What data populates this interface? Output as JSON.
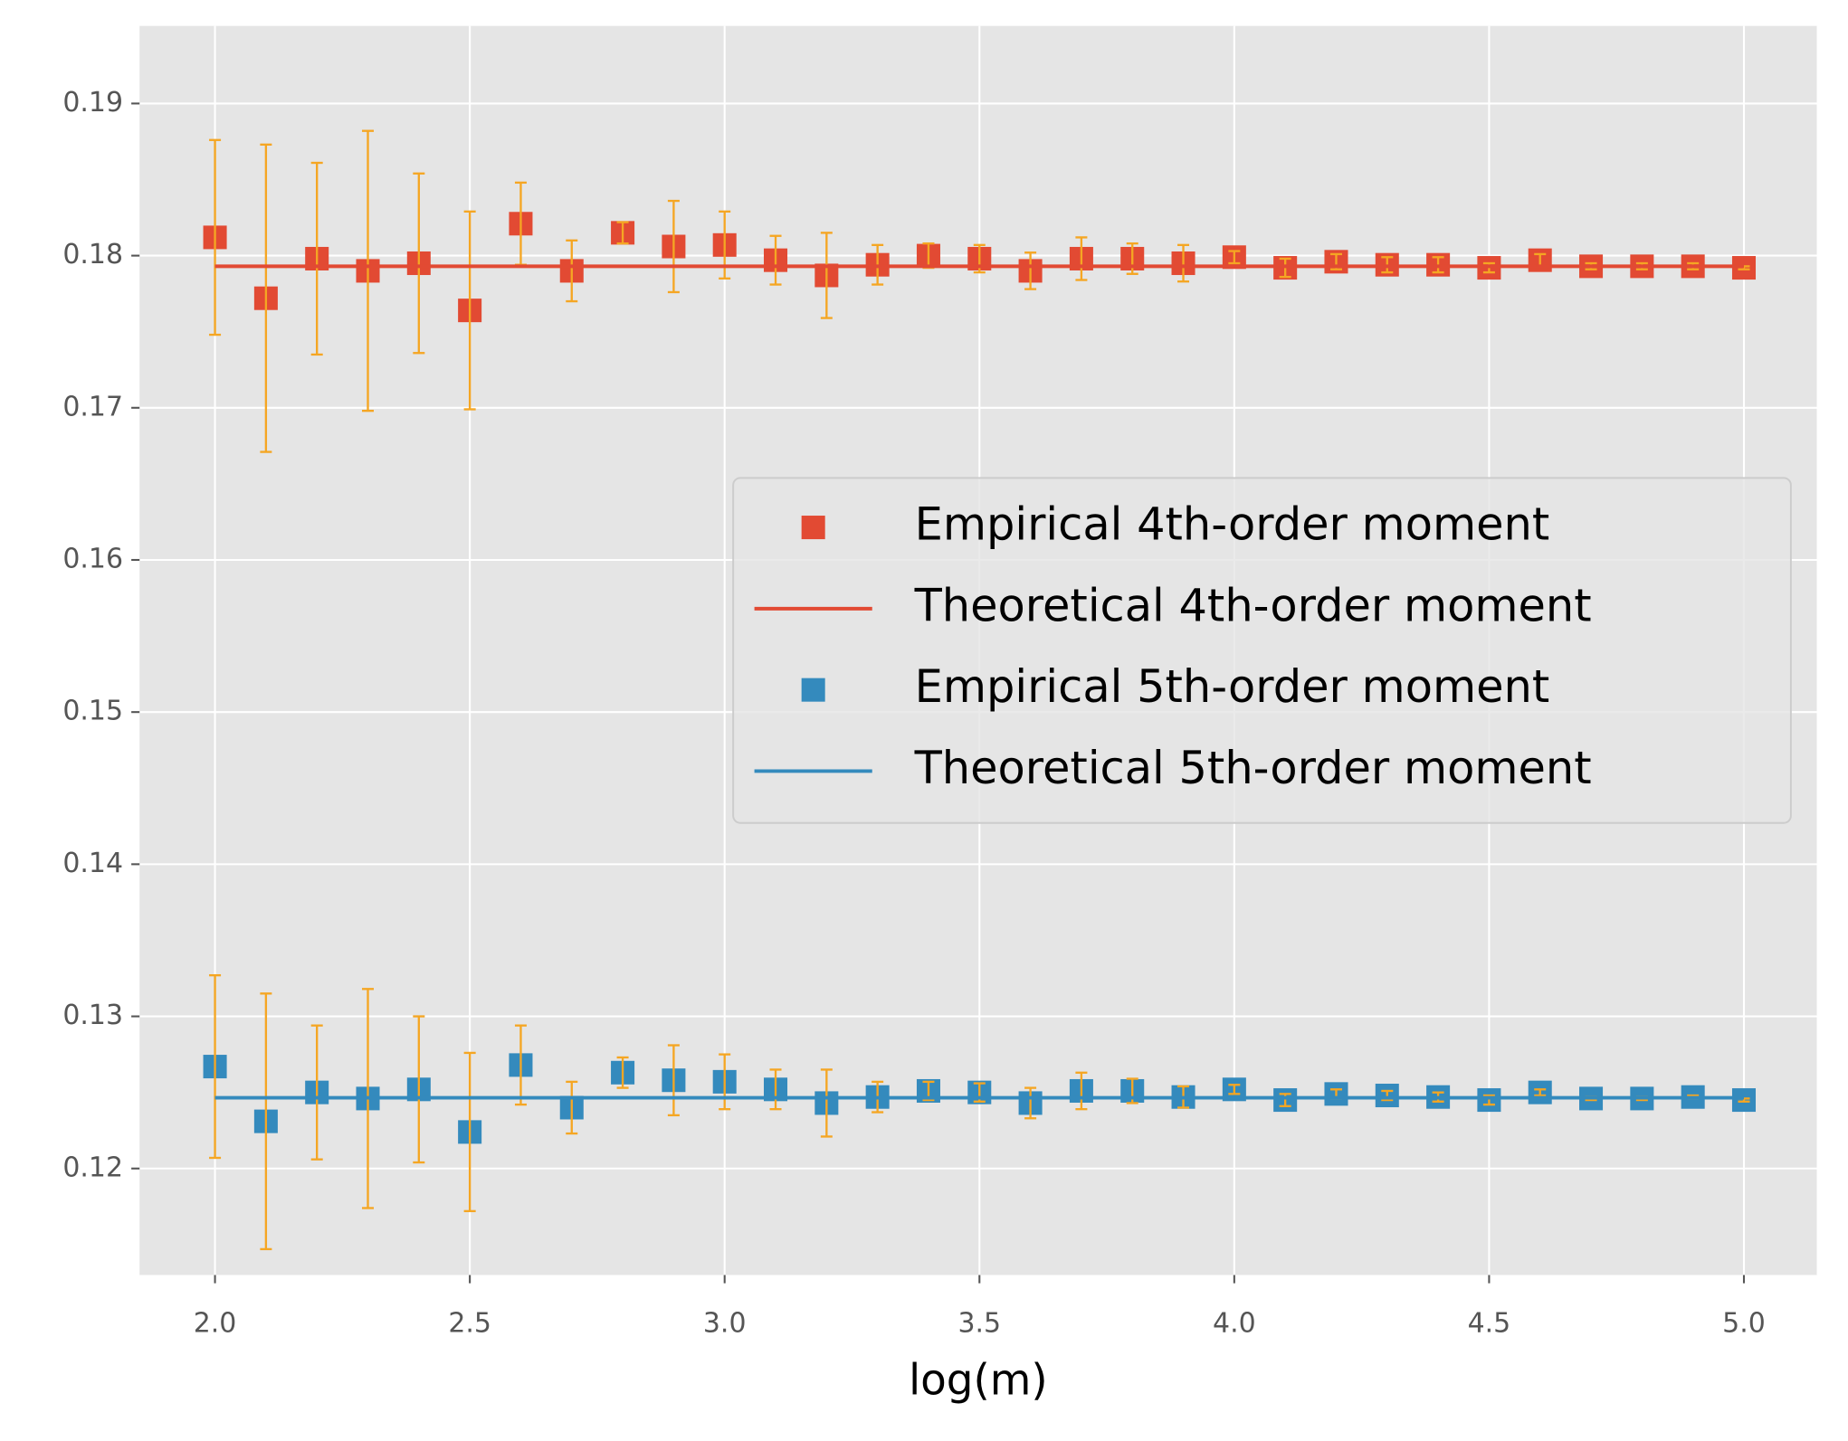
{
  "chart_data": {
    "type": "scatter",
    "xlabel": "log(m)",
    "x": [
      2.0,
      2.1,
      2.2,
      2.3,
      2.4,
      2.5,
      2.6,
      2.7,
      2.8,
      2.9,
      3.0,
      3.1,
      3.2,
      3.3,
      3.4,
      3.5,
      3.6,
      3.7,
      3.8,
      3.9,
      4.0,
      4.1,
      4.2,
      4.3,
      4.4,
      4.5,
      4.6,
      4.7,
      4.8,
      4.9,
      5.0
    ],
    "series": [
      {
        "name": "Empirical 4th-order moment",
        "type": "scatter",
        "color": "#e24a33",
        "error_color": "#f5a623",
        "values": [
          0.1812,
          0.1772,
          0.1798,
          0.179,
          0.1795,
          0.1764,
          0.1821,
          0.179,
          0.1815,
          0.1806,
          0.1807,
          0.1797,
          0.1787,
          0.1794,
          0.18,
          0.1798,
          0.179,
          0.1798,
          0.1798,
          0.1795,
          0.1799,
          0.1792,
          0.1796,
          0.1794,
          0.1794,
          0.1792,
          0.1797,
          0.1793,
          0.1793,
          0.1793,
          0.1792
        ],
        "errors": [
          0.0064,
          0.0101,
          0.0063,
          0.0092,
          0.0059,
          0.0065,
          0.0027,
          0.002,
          0.0007,
          0.003,
          0.0022,
          0.0016,
          0.0028,
          0.0013,
          0.0008,
          0.0009,
          0.0012,
          0.0014,
          0.001,
          0.0012,
          0.0004,
          0.0006,
          0.0005,
          0.0005,
          0.0005,
          0.0003,
          0.0004,
          0.0002,
          0.0002,
          0.0002,
          0.0001
        ]
      },
      {
        "name": "Theoretical 4th-order moment",
        "type": "line",
        "color": "#e24a33",
        "x": [
          2.0,
          5.0
        ],
        "values": [
          0.1793,
          0.1793
        ]
      },
      {
        "name": "Empirical 5th-order moment",
        "type": "scatter",
        "color": "#348abd",
        "error_color": "#f5a623",
        "values": [
          0.1267,
          0.1231,
          0.125,
          0.1246,
          0.1252,
          0.1224,
          0.1268,
          0.124,
          0.1263,
          0.1258,
          0.1257,
          0.1252,
          0.1243,
          0.1247,
          0.1251,
          0.125,
          0.1243,
          0.1251,
          0.1251,
          0.1247,
          0.1252,
          0.1245,
          0.1249,
          0.1248,
          0.1247,
          0.1245,
          0.125,
          0.1246,
          0.1246,
          0.1247,
          0.1245
        ],
        "errors": [
          0.006,
          0.0084,
          0.0044,
          0.0072,
          0.0048,
          0.0052,
          0.0026,
          0.0017,
          0.001,
          0.0023,
          0.0018,
          0.0013,
          0.0022,
          0.001,
          0.0006,
          0.0006,
          0.001,
          0.0012,
          0.0008,
          0.0007,
          0.0003,
          0.0004,
          0.0003,
          0.0003,
          0.0003,
          0.0003,
          0.0002,
          0.0001,
          0.0001,
          0.0001,
          0.0001
        ]
      },
      {
        "name": "Theoretical 5th-order moment",
        "type": "line",
        "color": "#348abd",
        "x": [
          2.0,
          5.0
        ],
        "values": [
          0.12465,
          0.12465
        ]
      }
    ],
    "xlim": [
      1.852,
      5.143
    ],
    "xticks": [
      {
        "value": 2,
        "label": "2.0"
      },
      2.5,
      {
        "value": 3,
        "label": "3.0"
      },
      3.5,
      {
        "value": 4,
        "label": "4.0"
      },
      4.5,
      {
        "value": 5,
        "label": "5.0"
      }
    ],
    "ylim": [
      0.113,
      0.1951
    ],
    "yticks": [
      0.12,
      0.13,
      0.14,
      0.15,
      0.16,
      0.17,
      0.18,
      0.19
    ],
    "grid": true,
    "legend": "center right"
  }
}
